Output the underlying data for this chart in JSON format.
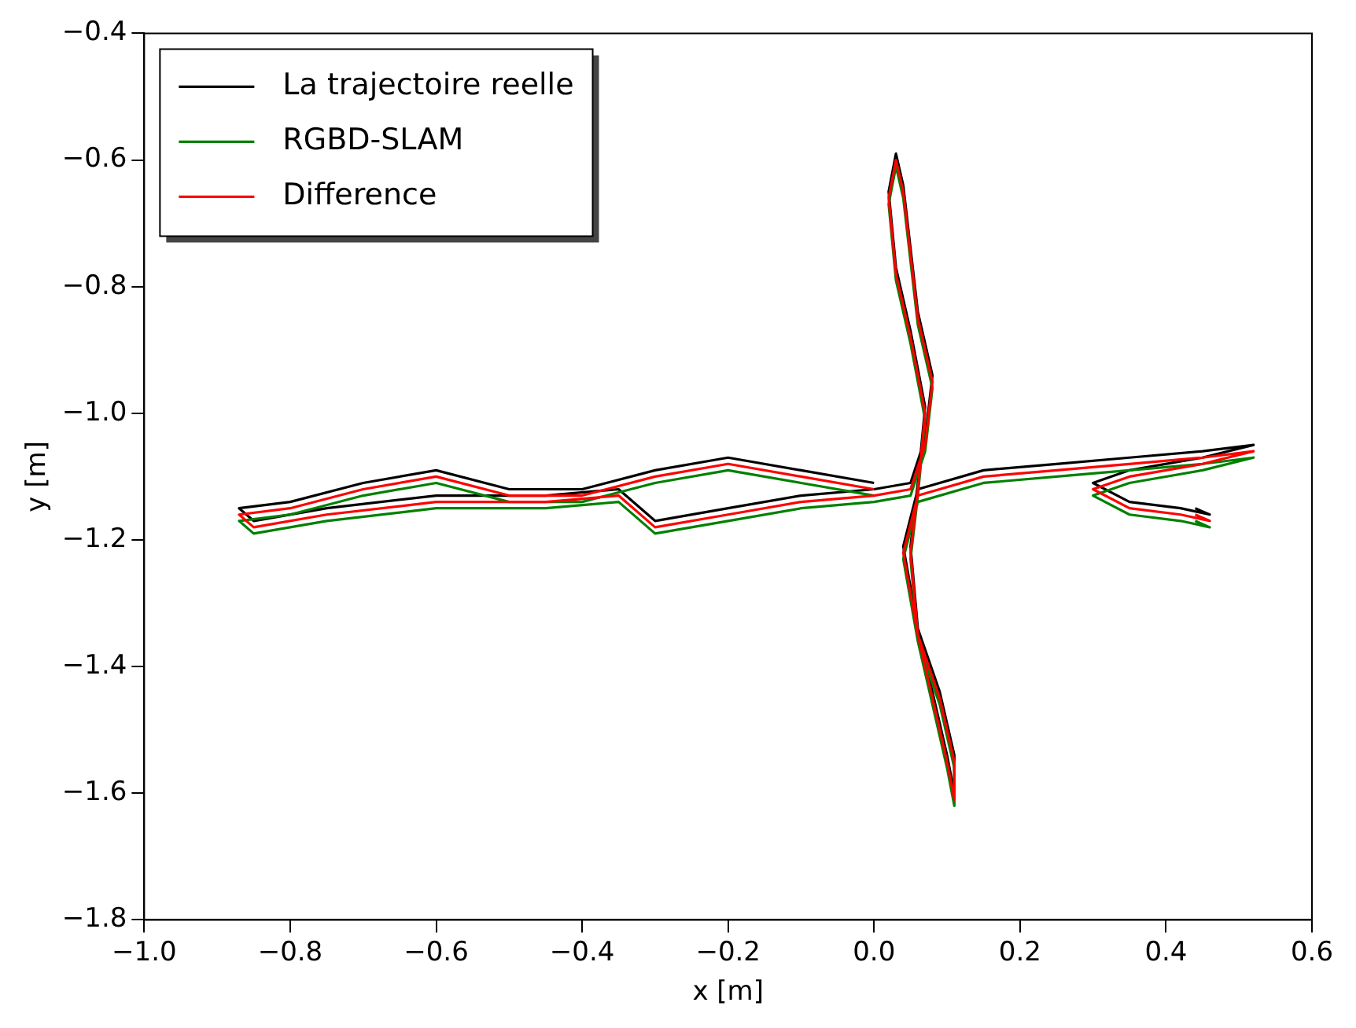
{
  "chart_data": {
    "type": "line",
    "xlabel": "x [m]",
    "ylabel": "y [m]",
    "x": [
      0.0,
      -0.1,
      -0.2,
      -0.3,
      -0.4,
      -0.5,
      -0.6,
      -0.7,
      -0.8,
      -0.87,
      -0.85,
      -0.75,
      -0.6,
      -0.45,
      -0.35,
      -0.3,
      -0.2,
      -0.1,
      0.0,
      0.05,
      0.07,
      0.08,
      0.06,
      0.05,
      0.04,
      0.03,
      0.02,
      0.03,
      0.05,
      0.07,
      0.06,
      0.05,
      0.06,
      0.09,
      0.11,
      0.11,
      0.1,
      0.08,
      0.06,
      0.04,
      0.06,
      0.15,
      0.25,
      0.35,
      0.45,
      0.52,
      0.45,
      0.35,
      0.3,
      0.35,
      0.42,
      0.46,
      0.44
    ],
    "series": [
      {
        "name": "La trajectoire reelle",
        "color": "#000000",
        "values": [
          -1.11,
          -1.09,
          -1.07,
          -1.09,
          -1.12,
          -1.12,
          -1.09,
          -1.11,
          -1.14,
          -1.15,
          -1.17,
          -1.15,
          -1.13,
          -1.13,
          -1.12,
          -1.17,
          -1.15,
          -1.13,
          -1.12,
          -1.11,
          -1.04,
          -0.94,
          -0.84,
          -0.74,
          -0.64,
          -0.59,
          -0.65,
          -0.77,
          -0.87,
          -0.99,
          -1.11,
          -1.21,
          -1.34,
          -1.44,
          -1.54,
          -1.6,
          -1.54,
          -1.44,
          -1.34,
          -1.21,
          -1.12,
          -1.09,
          -1.08,
          -1.07,
          -1.06,
          -1.05,
          -1.07,
          -1.09,
          -1.11,
          -1.14,
          -1.15,
          -1.16,
          -1.15
        ]
      },
      {
        "name": "RGBD-SLAM",
        "color": "#008000",
        "values": [
          -1.13,
          -1.11,
          -1.09,
          -1.11,
          -1.14,
          -1.14,
          -1.11,
          -1.13,
          -1.16,
          -1.17,
          -1.19,
          -1.17,
          -1.15,
          -1.15,
          -1.14,
          -1.19,
          -1.17,
          -1.15,
          -1.14,
          -1.13,
          -1.06,
          -0.96,
          -0.86,
          -0.76,
          -0.66,
          -0.61,
          -0.67,
          -0.79,
          -0.89,
          -1.01,
          -1.13,
          -1.23,
          -1.36,
          -1.46,
          -1.56,
          -1.62,
          -1.56,
          -1.46,
          -1.36,
          -1.23,
          -1.14,
          -1.11,
          -1.1,
          -1.09,
          -1.08,
          -1.07,
          -1.09,
          -1.11,
          -1.13,
          -1.16,
          -1.17,
          -1.18,
          -1.17
        ]
      },
      {
        "name": "Difference",
        "color": "#ff0000",
        "values": [
          -1.12,
          -1.1,
          -1.08,
          -1.1,
          -1.13,
          -1.13,
          -1.1,
          -1.12,
          -1.15,
          -1.16,
          -1.18,
          -1.16,
          -1.14,
          -1.14,
          -1.13,
          -1.18,
          -1.16,
          -1.14,
          -1.13,
          -1.12,
          -1.05,
          -0.95,
          -0.85,
          -0.75,
          -0.65,
          -0.6,
          -0.66,
          -0.78,
          -0.88,
          -1.0,
          -1.12,
          -1.22,
          -1.35,
          -1.45,
          -1.55,
          -1.61,
          -1.55,
          -1.45,
          -1.35,
          -1.22,
          -1.13,
          -1.1,
          -1.09,
          -1.08,
          -1.07,
          -1.06,
          -1.08,
          -1.1,
          -1.12,
          -1.15,
          -1.16,
          -1.17,
          -1.16
        ]
      }
    ],
    "xlim": [
      -1.0,
      0.6
    ],
    "ylim": [
      -1.8,
      -0.4
    ],
    "xticks": [
      {
        "value": -1.0,
        "label": "−1.0"
      },
      {
        "value": -0.8,
        "label": "−0.8"
      },
      {
        "value": -0.6,
        "label": "−0.6"
      },
      {
        "value": -0.4,
        "label": "−0.4"
      },
      {
        "value": -0.2,
        "label": "−0.2"
      },
      {
        "value": 0.0,
        "label": "0.0"
      },
      {
        "value": 0.2,
        "label": "0.2"
      },
      {
        "value": 0.4,
        "label": "0.4"
      },
      {
        "value": 0.6,
        "label": "0.6"
      }
    ],
    "yticks": [
      {
        "value": -1.8,
        "label": "−1.8"
      },
      {
        "value": -1.6,
        "label": "−1.6"
      },
      {
        "value": -1.4,
        "label": "−1.4"
      },
      {
        "value": -1.2,
        "label": "−1.2"
      },
      {
        "value": -1.0,
        "label": "−1.0"
      },
      {
        "value": -0.8,
        "label": "−0.8"
      },
      {
        "value": -0.6,
        "label": "−0.6"
      },
      {
        "value": -0.4,
        "label": "−0.4"
      }
    ],
    "grid": false,
    "legend": "top left",
    "marker": "none",
    "line_style": "solid"
  }
}
